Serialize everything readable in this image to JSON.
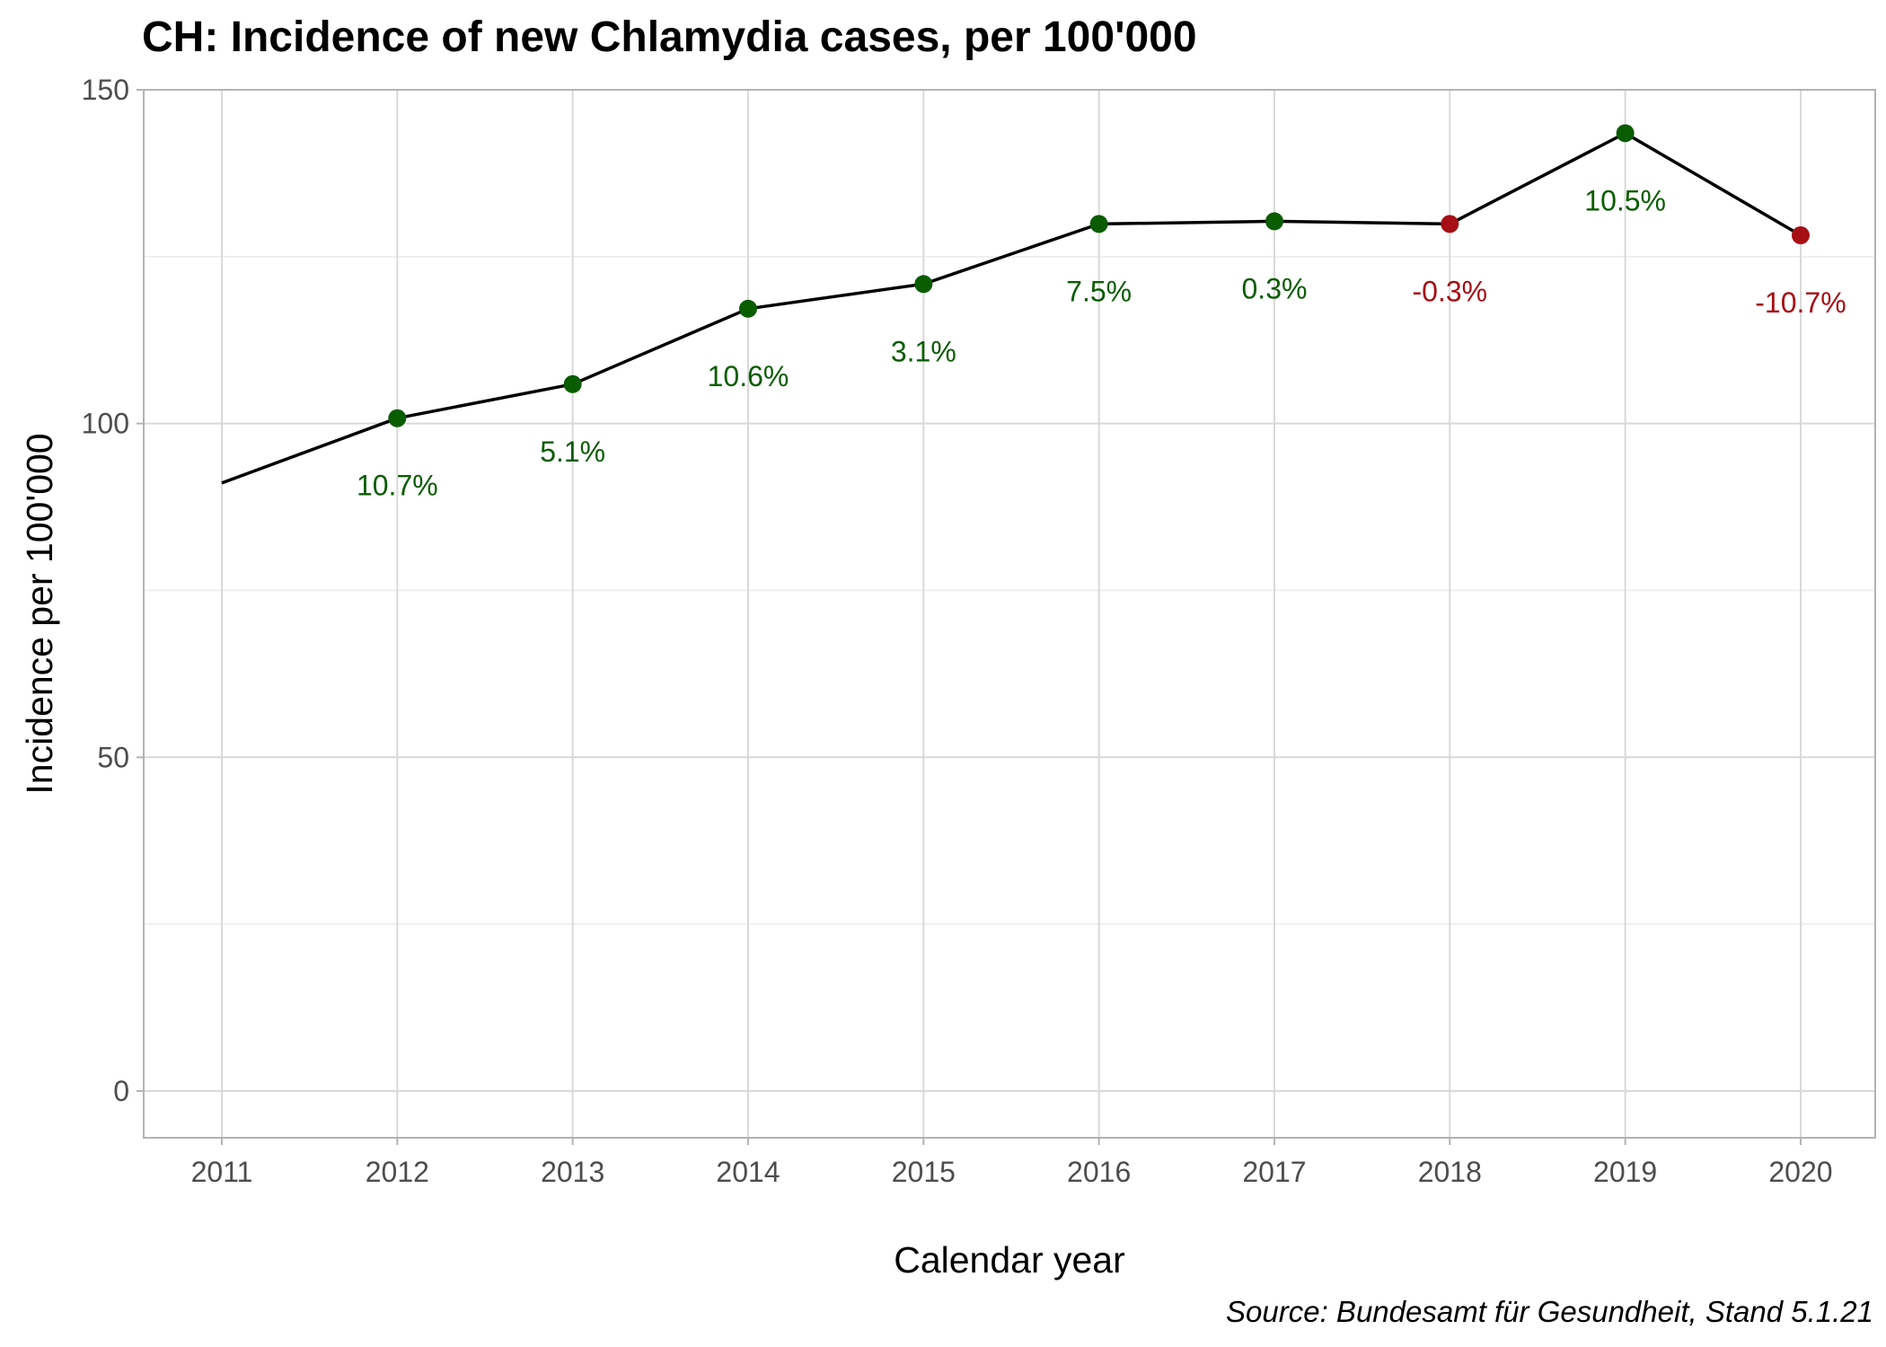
{
  "chart_data": {
    "type": "line",
    "title": "CH: Incidence of new Chlamydia cases, per 100'000",
    "xlabel": "Calendar year",
    "ylabel": "Incidence per 100'000",
    "caption": "Source: Bundesamt für Gesundheit, Stand 5.1.21",
    "x": [
      "2011",
      "2012",
      "2013",
      "2014",
      "2015",
      "2016",
      "2017",
      "2018",
      "2019",
      "2020"
    ],
    "values": [
      91.1,
      100.8,
      105.9,
      117.2,
      120.9,
      129.9,
      130.3,
      129.9,
      143.5,
      128.2
    ],
    "change_labels": [
      "",
      "10.7%",
      "5.1%",
      "10.6%",
      "3.1%",
      "7.5%",
      "0.3%",
      "-0.3%",
      "10.5%",
      "-10.7%"
    ],
    "ylim": [
      -7,
      150
    ],
    "yticks": [
      0,
      50,
      100,
      150
    ],
    "grid": true,
    "colors": {
      "increase": "#0a5c00",
      "decrease": "#a50f15",
      "line": "#000000"
    }
  }
}
